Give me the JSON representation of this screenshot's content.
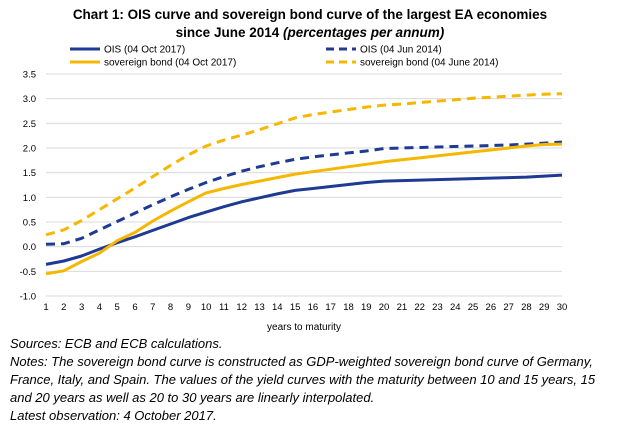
{
  "title": {
    "line1": "Chart 1: OIS curve and sovereign bond curve of the largest EA economies",
    "line2": "since June 2014",
    "line2_italic": "(percentages per annum)"
  },
  "notes": {
    "sources": "Sources: ECB and ECB calculations.",
    "notes_1": "Notes: The sovereign bond curve is constructed as GDP-weighted sovereign bond curve of Germany,",
    "notes_2": "France, Italy, and Spain. The values of the yield curves with the maturity between 10 and 15 years, 15",
    "notes_3": "and 20 years as well as 20 to 30 years are linearly interpolated.",
    "latest": "Latest observation: 4 October 2017."
  },
  "colors": {
    "navy": "#1f3a93",
    "gold": "#f5b700",
    "grid": "#d9d9d9"
  },
  "chart_data": {
    "type": "line",
    "title": "Chart 1: OIS curve and sovereign bond curve of the largest EA economies since June 2014 (percentages per annum)",
    "xlabel": "years to maturity",
    "ylabel": "",
    "x": [
      1,
      2,
      3,
      4,
      5,
      6,
      7,
      8,
      9,
      10,
      11,
      12,
      13,
      14,
      15,
      16,
      17,
      18,
      19,
      20,
      21,
      22,
      23,
      24,
      25,
      26,
      27,
      28,
      29,
      30
    ],
    "ylim": [
      -1.0,
      3.5
    ],
    "yticks": [
      "-1.0",
      "-0.5",
      "0.0",
      "0.5",
      "1.0",
      "1.5",
      "2.0",
      "2.5",
      "3.0",
      "3.5"
    ],
    "grid": true,
    "legend_position": "top",
    "series": [
      {
        "name": "OIS (04 Oct 2017)",
        "color": "#1f3a93",
        "style": "solid",
        "values": [
          -0.36,
          -0.29,
          -0.19,
          -0.05,
          0.08,
          0.2,
          0.33,
          0.46,
          0.59,
          0.7,
          0.81,
          0.91,
          0.99,
          1.07,
          1.14,
          1.18,
          1.22,
          1.26,
          1.3,
          1.33,
          1.34,
          1.35,
          1.36,
          1.37,
          1.38,
          1.39,
          1.4,
          1.41,
          1.43,
          1.45
        ]
      },
      {
        "name": "OIS (04 Jun 2014)",
        "color": "#1f3a93",
        "style": "dashed",
        "values": [
          0.05,
          0.06,
          0.17,
          0.34,
          0.51,
          0.68,
          0.85,
          1.01,
          1.16,
          1.3,
          1.42,
          1.53,
          1.62,
          1.7,
          1.77,
          1.82,
          1.86,
          1.9,
          1.94,
          1.99,
          2.0,
          2.01,
          2.02,
          2.03,
          2.04,
          2.05,
          2.06,
          2.08,
          2.1,
          2.12
        ]
      },
      {
        "name": "sovereign bond (04 Oct 2017)",
        "color": "#f5b700",
        "style": "solid",
        "values": [
          -0.55,
          -0.49,
          -0.3,
          -0.13,
          0.12,
          0.29,
          0.52,
          0.72,
          0.91,
          1.09,
          1.18,
          1.26,
          1.33,
          1.4,
          1.47,
          1.52,
          1.57,
          1.62,
          1.67,
          1.72,
          1.76,
          1.8,
          1.84,
          1.88,
          1.92,
          1.96,
          2.0,
          2.04,
          2.07,
          2.08
        ]
      },
      {
        "name": "sovereign bond (04 June 2014)",
        "color": "#f5b700",
        "style": "dashed",
        "values": [
          0.24,
          0.34,
          0.53,
          0.75,
          0.97,
          1.19,
          1.42,
          1.65,
          1.86,
          2.04,
          2.16,
          2.26,
          2.37,
          2.49,
          2.61,
          2.68,
          2.73,
          2.78,
          2.83,
          2.87,
          2.89,
          2.92,
          2.95,
          2.98,
          3.01,
          3.03,
          3.05,
          3.07,
          3.09,
          3.1
        ]
      }
    ]
  }
}
